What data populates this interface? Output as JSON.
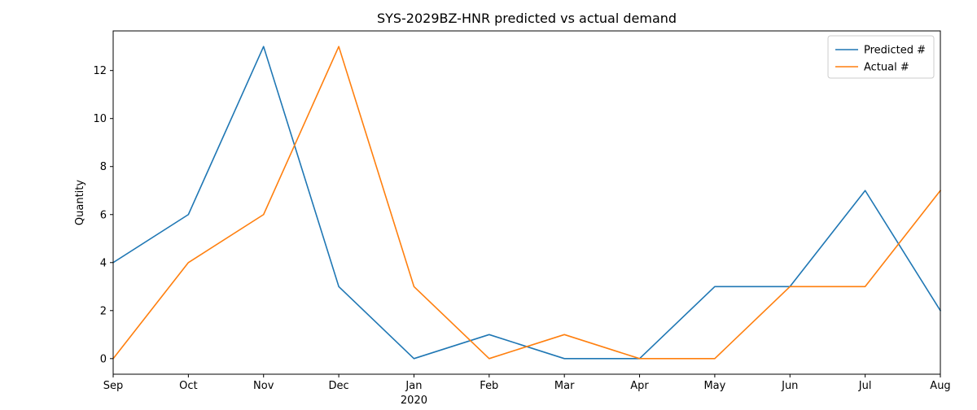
{
  "chart_data": {
    "type": "line",
    "title": "SYS-2029BZ-HNR predicted vs actual demand",
    "xlabel": "",
    "ylabel": "Quantity",
    "categories": [
      "Sep",
      "Oct",
      "Nov",
      "Dec",
      "Jan",
      "Feb",
      "Mar",
      "Apr",
      "May",
      "Jun",
      "Jul",
      "Aug"
    ],
    "x_secondary_label": "2020",
    "x_secondary_under": "Jan",
    "ylim": [
      -0.65,
      13.65
    ],
    "yticks": [
      0,
      2,
      4,
      6,
      8,
      10,
      12
    ],
    "grid": false,
    "legend": "top-right",
    "series": [
      {
        "name": "Predicted #",
        "color": "#1f77b4",
        "values": [
          4,
          6,
          13,
          3,
          0,
          1,
          0,
          0,
          3,
          3,
          7,
          2
        ]
      },
      {
        "name": "Actual #",
        "color": "#ff7f0e",
        "values": [
          0,
          4,
          6,
          13,
          3,
          0,
          1,
          0,
          0,
          3,
          3,
          7
        ]
      }
    ]
  }
}
